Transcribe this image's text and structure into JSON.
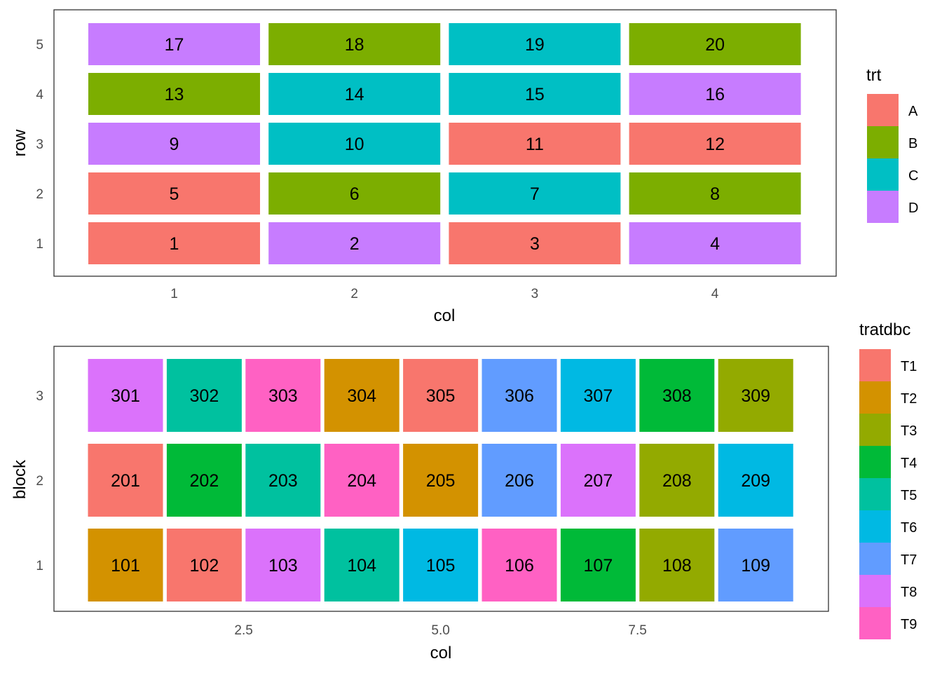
{
  "chart_data": [
    {
      "type": "heatmap",
      "xlabel": "col",
      "ylabel": "row",
      "x_ticks": [
        "1",
        "2",
        "3",
        "4"
      ],
      "y_ticks": [
        "1",
        "2",
        "3",
        "4",
        "5"
      ],
      "legend": {
        "title": "trt",
        "position": "right",
        "entries": [
          {
            "label": "A",
            "color": "#F8766D"
          },
          {
            "label": "B",
            "color": "#7CAE00"
          },
          {
            "label": "C",
            "color": "#00BFC4"
          },
          {
            "label": "D",
            "color": "#C77CFF"
          }
        ]
      },
      "cells": [
        {
          "col": 1,
          "row": 1,
          "label": "1",
          "trt": "A"
        },
        {
          "col": 2,
          "row": 1,
          "label": "2",
          "trt": "D"
        },
        {
          "col": 3,
          "row": 1,
          "label": "3",
          "trt": "A"
        },
        {
          "col": 4,
          "row": 1,
          "label": "4",
          "trt": "D"
        },
        {
          "col": 1,
          "row": 2,
          "label": "5",
          "trt": "A"
        },
        {
          "col": 2,
          "row": 2,
          "label": "6",
          "trt": "B"
        },
        {
          "col": 3,
          "row": 2,
          "label": "7",
          "trt": "C"
        },
        {
          "col": 4,
          "row": 2,
          "label": "8",
          "trt": "B"
        },
        {
          "col": 1,
          "row": 3,
          "label": "9",
          "trt": "D"
        },
        {
          "col": 2,
          "row": 3,
          "label": "10",
          "trt": "C"
        },
        {
          "col": 3,
          "row": 3,
          "label": "11",
          "trt": "A"
        },
        {
          "col": 4,
          "row": 3,
          "label": "12",
          "trt": "A"
        },
        {
          "col": 1,
          "row": 4,
          "label": "13",
          "trt": "B"
        },
        {
          "col": 2,
          "row": 4,
          "label": "14",
          "trt": "C"
        },
        {
          "col": 3,
          "row": 4,
          "label": "15",
          "trt": "C"
        },
        {
          "col": 4,
          "row": 4,
          "label": "16",
          "trt": "D"
        },
        {
          "col": 1,
          "row": 5,
          "label": "17",
          "trt": "D"
        },
        {
          "col": 2,
          "row": 5,
          "label": "18",
          "trt": "B"
        },
        {
          "col": 3,
          "row": 5,
          "label": "19",
          "trt": "C"
        },
        {
          "col": 4,
          "row": 5,
          "label": "20",
          "trt": "B"
        }
      ]
    },
    {
      "type": "heatmap",
      "xlabel": "col",
      "ylabel": "block",
      "x_ticks": [
        {
          "value": 2.5,
          "label": "2.5"
        },
        {
          "value": 5.0,
          "label": "5.0"
        },
        {
          "value": 7.5,
          "label": "7.5"
        }
      ],
      "y_ticks": [
        "1",
        "2",
        "3"
      ],
      "legend": {
        "title": "tratdbc",
        "position": "right",
        "entries": [
          {
            "label": "T1",
            "color": "#F8766D"
          },
          {
            "label": "T2",
            "color": "#D39200"
          },
          {
            "label": "T3",
            "color": "#93AA00"
          },
          {
            "label": "T4",
            "color": "#00BA38"
          },
          {
            "label": "T5",
            "color": "#00C19F"
          },
          {
            "label": "T6",
            "color": "#00B9E3"
          },
          {
            "label": "T7",
            "color": "#619CFF"
          },
          {
            "label": "T8",
            "color": "#DB72FB"
          },
          {
            "label": "T9",
            "color": "#FF61C3"
          }
        ]
      },
      "cells": [
        {
          "col": 1,
          "block": 1,
          "label": "101",
          "trt": "T2"
        },
        {
          "col": 2,
          "block": 1,
          "label": "102",
          "trt": "T1"
        },
        {
          "col": 3,
          "block": 1,
          "label": "103",
          "trt": "T8"
        },
        {
          "col": 4,
          "block": 1,
          "label": "104",
          "trt": "T5"
        },
        {
          "col": 5,
          "block": 1,
          "label": "105",
          "trt": "T6"
        },
        {
          "col": 6,
          "block": 1,
          "label": "106",
          "trt": "T9"
        },
        {
          "col": 7,
          "block": 1,
          "label": "107",
          "trt": "T4"
        },
        {
          "col": 8,
          "block": 1,
          "label": "108",
          "trt": "T3"
        },
        {
          "col": 9,
          "block": 1,
          "label": "109",
          "trt": "T7"
        },
        {
          "col": 1,
          "block": 2,
          "label": "201",
          "trt": "T1"
        },
        {
          "col": 2,
          "block": 2,
          "label": "202",
          "trt": "T4"
        },
        {
          "col": 3,
          "block": 2,
          "label": "203",
          "trt": "T5"
        },
        {
          "col": 4,
          "block": 2,
          "label": "204",
          "trt": "T9"
        },
        {
          "col": 5,
          "block": 2,
          "label": "205",
          "trt": "T2"
        },
        {
          "col": 6,
          "block": 2,
          "label": "206",
          "trt": "T7"
        },
        {
          "col": 7,
          "block": 2,
          "label": "207",
          "trt": "T8"
        },
        {
          "col": 8,
          "block": 2,
          "label": "208",
          "trt": "T3"
        },
        {
          "col": 9,
          "block": 2,
          "label": "209",
          "trt": "T6"
        },
        {
          "col": 1,
          "block": 3,
          "label": "301",
          "trt": "T8"
        },
        {
          "col": 2,
          "block": 3,
          "label": "302",
          "trt": "T5"
        },
        {
          "col": 3,
          "block": 3,
          "label": "303",
          "trt": "T9"
        },
        {
          "col": 4,
          "block": 3,
          "label": "304",
          "trt": "T2"
        },
        {
          "col": 5,
          "block": 3,
          "label": "305",
          "trt": "T1"
        },
        {
          "col": 6,
          "block": 3,
          "label": "306",
          "trt": "T7"
        },
        {
          "col": 7,
          "block": 3,
          "label": "307",
          "trt": "T6"
        },
        {
          "col": 8,
          "block": 3,
          "label": "308",
          "trt": "T4"
        },
        {
          "col": 9,
          "block": 3,
          "label": "309",
          "trt": "T3"
        }
      ]
    }
  ]
}
